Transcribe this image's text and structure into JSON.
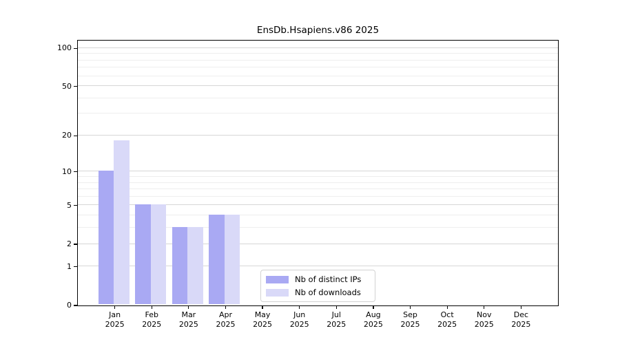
{
  "title": "EnsDb.Hsapiens.v86 2025",
  "chart_data": {
    "type": "bar",
    "title": "EnsDb.Hsapiens.v86 2025",
    "categories": [
      "Jan 2025",
      "Feb 2025",
      "Mar 2025",
      "Apr 2025",
      "May 2025",
      "Jun 2025",
      "Jul 2025",
      "Aug 2025",
      "Sep 2025",
      "Oct 2025",
      "Nov 2025",
      "Dec 2025"
    ],
    "series": [
      {
        "name": "Nb of distinct IPs",
        "color": "#a9a9f3",
        "values": [
          10,
          5,
          3,
          4,
          0,
          0,
          0,
          0,
          0,
          0,
          0,
          0
        ]
      },
      {
        "name": "Nb of downloads",
        "color": "#d9d9f8",
        "values": [
          18,
          5,
          3,
          4,
          0,
          0,
          0,
          0,
          0,
          0,
          0,
          0
        ]
      }
    ],
    "xlabel": "",
    "ylabel": "",
    "yscale": "log1p",
    "ylim": [
      0,
      115
    ],
    "ytick_values": [
      0,
      1,
      2,
      5,
      10,
      20,
      50,
      100
    ],
    "ytick_labels": [
      "0",
      "1",
      "2",
      "5",
      "10",
      "20",
      "50",
      "100"
    ],
    "grid_minor_values": [
      3,
      4,
      6,
      7,
      8,
      9,
      30,
      40,
      60,
      70,
      80,
      90
    ],
    "grid": "horizontal",
    "legend_position": "lower center"
  },
  "legend": {
    "items": [
      {
        "label": "Nb of distinct IPs"
      },
      {
        "label": "Nb of downloads"
      }
    ]
  },
  "colors": {
    "distinct_ips": "#a9a9f3",
    "downloads": "#d9d9f8",
    "grid_major": "#d6d6d6",
    "grid_minor": "#eeeeee",
    "axis": "#000000",
    "legend_border": "#d2d2d2",
    "text": "#000000"
  }
}
